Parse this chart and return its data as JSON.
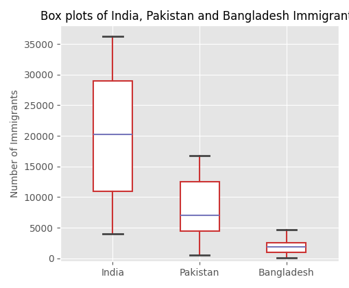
{
  "title": "Box plots of India, Pakistan and Bangladesh Immigrants",
  "ylabel": "Number of Immigrants",
  "categories": [
    "India",
    "Pakistan",
    "Bangladesh"
  ],
  "box_stats": [
    {
      "label": "India",
      "whislo": 4000,
      "q1": 11000,
      "med": 20200,
      "q3": 29000,
      "whishi": 36200
    },
    {
      "label": "Pakistan",
      "whislo": 500,
      "q1": 4500,
      "med": 7000,
      "q3": 12500,
      "whishi": 16800
    },
    {
      "label": "Bangladesh",
      "whislo": 100,
      "q1": 1000,
      "med": 1900,
      "q3": 2600,
      "whishi": 4700
    }
  ],
  "box_color": "#CC3333",
  "median_color": "#7777BB",
  "whisker_color": "#CC3333",
  "cap_color": "#444444",
  "ylim": [
    -500,
    38000
  ],
  "title_fontsize": 12,
  "label_fontsize": 10,
  "figsize": [
    5.09,
    4.2
  ],
  "dpi": 100
}
